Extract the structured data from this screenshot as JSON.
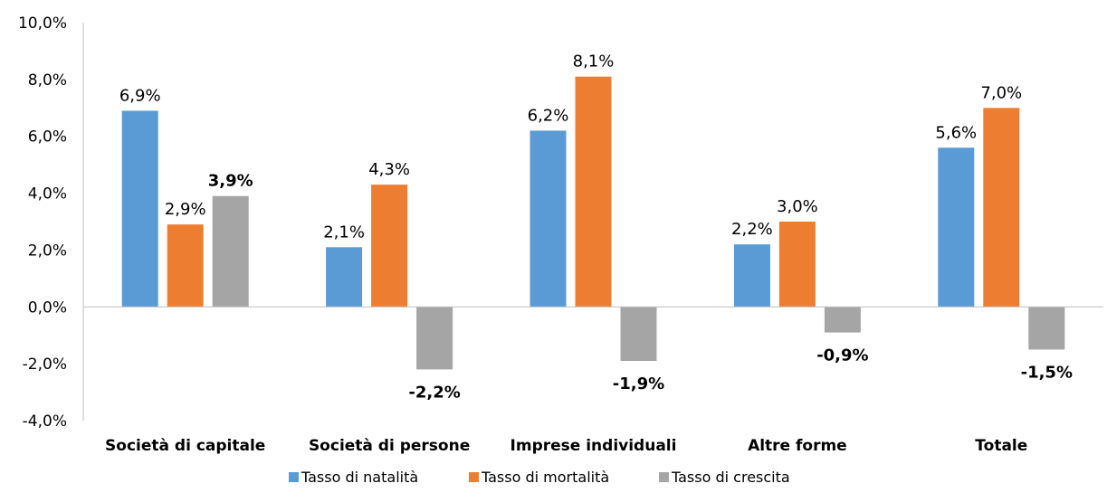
{
  "chart_data": {
    "type": "bar",
    "title": "",
    "xlabel": "",
    "ylabel": "",
    "categories": [
      "Società di capitale",
      "Società di persone",
      "Imprese individuali",
      "Altre forme",
      "Totale"
    ],
    "series": [
      {
        "name": "Tasso di natalità",
        "color": "#5B9BD5",
        "values": [
          6.9,
          2.1,
          6.2,
          2.2,
          5.6
        ],
        "labels": [
          "6,9%",
          "2,1%",
          "6,2%",
          "2,2%",
          "5,6%"
        ],
        "bold_labels": false
      },
      {
        "name": "Tasso di mortalità",
        "color": "#ED7D31",
        "values": [
          2.9,
          4.3,
          8.1,
          3.0,
          7.0
        ],
        "labels": [
          "2,9%",
          "4,3%",
          "8,1%",
          "3,0%",
          "7,0%"
        ],
        "bold_labels": false
      },
      {
        "name": "Tasso di crescita",
        "color": "#A5A5A5",
        "values": [
          3.9,
          -2.2,
          -1.9,
          -0.9,
          -1.5
        ],
        "labels": [
          "3,9%",
          "-2,2%",
          "-1,9%",
          "-0,9%",
          "-1,5%"
        ],
        "bold_labels": true
      }
    ],
    "ylim": [
      -4,
      10
    ],
    "yticks": [
      -4,
      -2,
      0,
      2,
      4,
      6,
      8,
      10
    ],
    "ytick_labels": [
      "-4,0%",
      "-2,0%",
      "0,0%",
      "2,0%",
      "4,0%",
      "6,0%",
      "8,0%",
      "10,0%"
    ],
    "grid": false,
    "legend_position": "bottom"
  }
}
